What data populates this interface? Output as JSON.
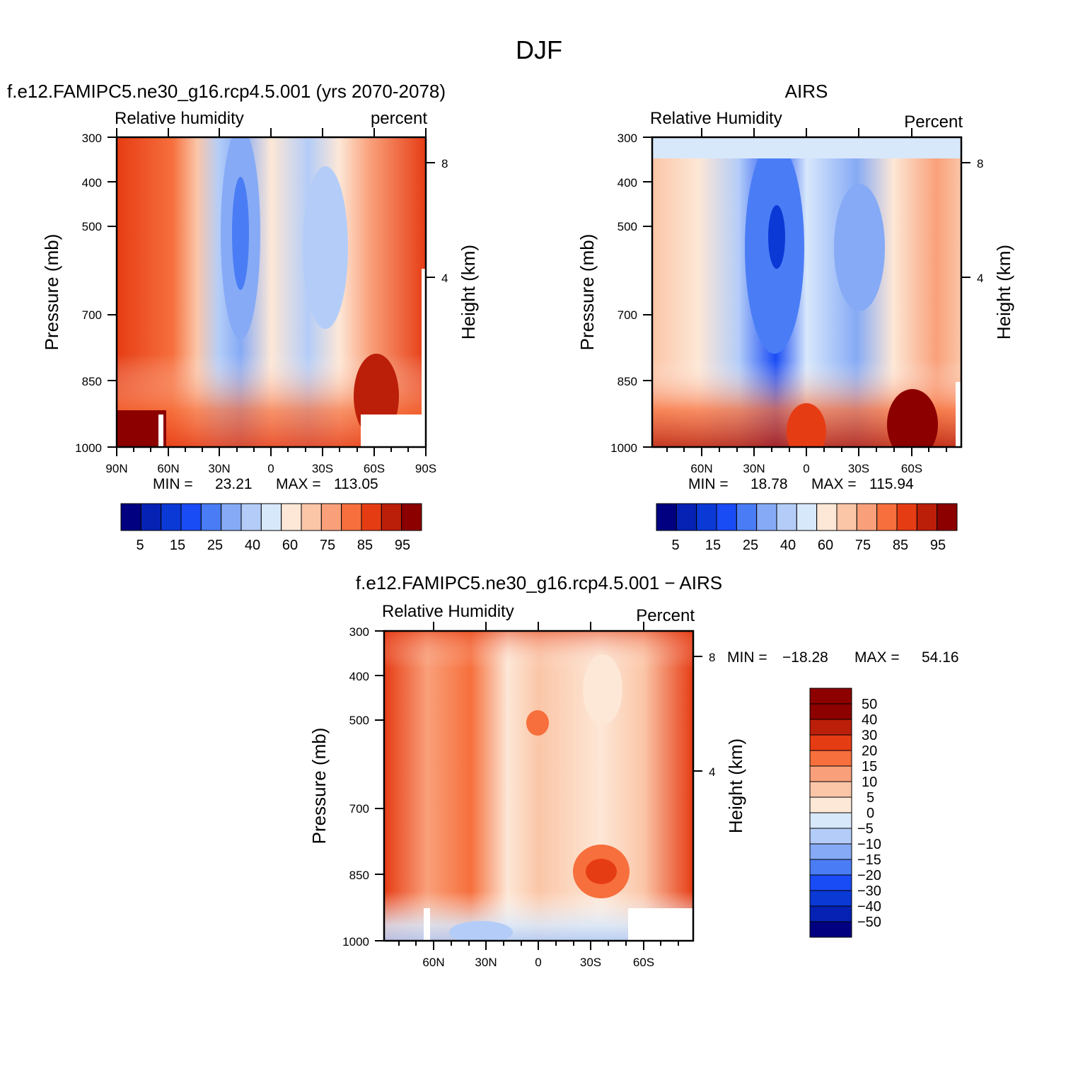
{
  "main_title": "DJF",
  "colors": {
    "rh_scale": [
      "#000080",
      "#0622b4",
      "#0b39d6",
      "#1a4cf5",
      "#4a7df5",
      "#86aaf5",
      "#b4cdf8",
      "#d8e8fb",
      "#fde7d6",
      "#fbc6a8",
      "#f9a07a",
      "#f66f3c",
      "#e63c14",
      "#bb1f0a",
      "#8c0000"
    ],
    "diff_scale": [
      "#000080",
      "#0622b4",
      "#0b39d6",
      "#1a4cf5",
      "#4a7df5",
      "#86aaf5",
      "#b4cdf8",
      "#d8e8fb",
      "#fde7d6",
      "#fbc6a8",
      "#f9a07a",
      "#f66f3c",
      "#e63c14",
      "#bb1f0a",
      "#8c0000"
    ]
  },
  "chart_data": [
    {
      "type": "heatmap",
      "panel_title": "f.e12.FAMIPC5.ne30_g16.rcp4.5.001 (yrs 2070-2078)",
      "left_label": "Relative humidity",
      "right_label": "percent",
      "ylabel": "Pressure (mb)",
      "ylabel2": "Height (km)",
      "y_ticks": [
        "300",
        "400",
        "500",
        "700",
        "850",
        "1000"
      ],
      "y2_ticks": [
        "8",
        "4"
      ],
      "x_ticks": [
        "90N",
        "60N",
        "30N",
        "0",
        "30S",
        "60S",
        "90S"
      ],
      "min_label": "MIN =",
      "min_value": "23.21",
      "max_label": "MAX =",
      "max_value": "113.05",
      "colorbar_labels": [
        "5",
        "15",
        "25",
        "40",
        "60",
        "75",
        "85",
        "95"
      ]
    },
    {
      "type": "heatmap",
      "panel_title": "AIRS",
      "left_label": "Relative Humidity",
      "right_label": "Percent",
      "ylabel": "Pressure (mb)",
      "ylabel2": "Height (km)",
      "y_ticks": [
        "300",
        "400",
        "500",
        "700",
        "850",
        "1000"
      ],
      "y2_ticks": [
        "8",
        "4"
      ],
      "x_ticks": [
        "60N",
        "30N",
        "0",
        "30S",
        "60S"
      ],
      "min_label": "MIN =",
      "min_value": "18.78",
      "max_label": "MAX =",
      "max_value": "115.94",
      "colorbar_labels": [
        "5",
        "15",
        "25",
        "40",
        "60",
        "75",
        "85",
        "95"
      ]
    },
    {
      "type": "heatmap",
      "panel_title": "f.e12.FAMIPC5.ne30_g16.rcp4.5.001 − AIRS",
      "left_label": "Relative Humidity",
      "right_label": "Percent",
      "ylabel": "Pressure (mb)",
      "ylabel2": "Height (km)",
      "y_ticks": [
        "300",
        "400",
        "500",
        "700",
        "850",
        "1000"
      ],
      "y2_ticks": [
        "8",
        "4"
      ],
      "x_ticks": [
        "60N",
        "30N",
        "0",
        "30S",
        "60S"
      ],
      "min_label": "MIN =",
      "min_value": "−18.28",
      "max_label": "MAX =",
      "max_value": "54.16",
      "colorbar_labels": [
        "50",
        "40",
        "30",
        "20",
        "15",
        "10",
        "5",
        "0",
        "−5",
        "−10",
        "−15",
        "−20",
        "−30",
        "−40",
        "−50"
      ]
    }
  ]
}
